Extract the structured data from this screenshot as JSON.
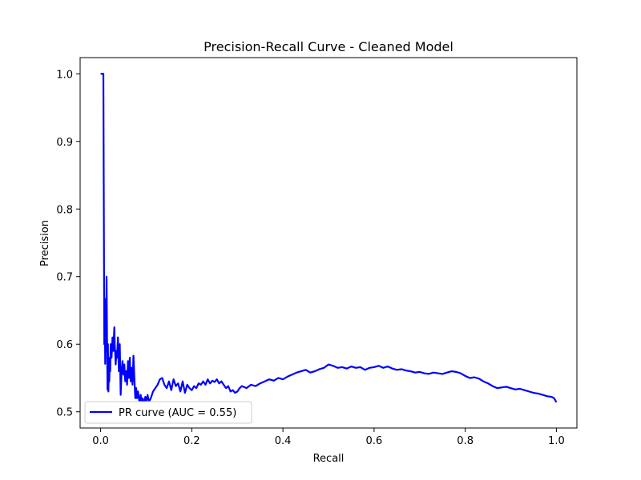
{
  "chart_data": {
    "type": "line",
    "title": "Precision-Recall Curve - Cleaned Model",
    "xlabel": "Recall",
    "ylabel": "Precision",
    "xlim": [
      -0.045,
      1.045
    ],
    "ylim": [
      0.476,
      1.024
    ],
    "xticks": [
      0.0,
      0.2,
      0.4,
      0.6,
      0.8,
      1.0
    ],
    "xtick_labels": [
      "0.0",
      "0.2",
      "0.4",
      "0.6",
      "0.8",
      "1.0"
    ],
    "yticks": [
      0.5,
      0.6,
      0.7,
      0.8,
      0.9,
      1.0
    ],
    "ytick_labels": [
      "0.5",
      "0.6",
      "0.7",
      "0.8",
      "0.9",
      "1.0"
    ],
    "legend": {
      "placement": "lower-left",
      "entries": [
        "PR curve (AUC = 0.55)"
      ]
    },
    "grid": false,
    "series": [
      {
        "name": "PR curve (AUC = 0.55)",
        "color": "#0000ff",
        "x": [
          0.0,
          0.002,
          0.004,
          0.006,
          0.008,
          0.009,
          0.01,
          0.011,
          0.012,
          0.013,
          0.014,
          0.015,
          0.016,
          0.017,
          0.018,
          0.019,
          0.02,
          0.021,
          0.022,
          0.024,
          0.026,
          0.028,
          0.03,
          0.031,
          0.033,
          0.035,
          0.036,
          0.038,
          0.04,
          0.042,
          0.044,
          0.046,
          0.048,
          0.05,
          0.052,
          0.054,
          0.056,
          0.058,
          0.06,
          0.062,
          0.064,
          0.066,
          0.068,
          0.07,
          0.072,
          0.074,
          0.076,
          0.078,
          0.08,
          0.082,
          0.085,
          0.088,
          0.09,
          0.092,
          0.095,
          0.098,
          0.1,
          0.103,
          0.106,
          0.11,
          0.115,
          0.12,
          0.125,
          0.13,
          0.135,
          0.14,
          0.145,
          0.15,
          0.155,
          0.16,
          0.165,
          0.17,
          0.175,
          0.18,
          0.185,
          0.19,
          0.195,
          0.2,
          0.205,
          0.21,
          0.215,
          0.22,
          0.225,
          0.23,
          0.235,
          0.24,
          0.245,
          0.25,
          0.255,
          0.26,
          0.265,
          0.27,
          0.275,
          0.28,
          0.285,
          0.29,
          0.295,
          0.3,
          0.305,
          0.31,
          0.32,
          0.33,
          0.34,
          0.35,
          0.36,
          0.37,
          0.38,
          0.39,
          0.4,
          0.41,
          0.42,
          0.43,
          0.44,
          0.45,
          0.46,
          0.47,
          0.48,
          0.49,
          0.5,
          0.51,
          0.52,
          0.53,
          0.54,
          0.55,
          0.56,
          0.57,
          0.58,
          0.59,
          0.6,
          0.61,
          0.62,
          0.63,
          0.64,
          0.65,
          0.66,
          0.67,
          0.68,
          0.69,
          0.7,
          0.71,
          0.72,
          0.73,
          0.74,
          0.75,
          0.76,
          0.77,
          0.78,
          0.79,
          0.8,
          0.81,
          0.82,
          0.83,
          0.84,
          0.85,
          0.86,
          0.87,
          0.88,
          0.89,
          0.9,
          0.91,
          0.92,
          0.93,
          0.94,
          0.95,
          0.96,
          0.97,
          0.98,
          0.99,
          0.995,
          1.0
        ],
        "y": [
          1.0,
          1.0,
          1.0,
          1.0,
          0.6,
          0.667,
          0.571,
          0.625,
          0.6,
          0.7,
          0.615,
          0.533,
          0.6,
          0.53,
          0.56,
          0.545,
          0.58,
          0.56,
          0.6,
          0.58,
          0.61,
          0.59,
          0.625,
          0.6,
          0.57,
          0.59,
          0.58,
          0.61,
          0.56,
          0.6,
          0.525,
          0.56,
          0.575,
          0.555,
          0.57,
          0.545,
          0.56,
          0.54,
          0.575,
          0.55,
          0.58,
          0.545,
          0.565,
          0.54,
          0.583,
          0.55,
          0.52,
          0.535,
          0.52,
          0.53,
          0.515,
          0.525,
          0.51,
          0.52,
          0.512,
          0.522,
          0.514,
          0.525,
          0.515,
          0.52,
          0.53,
          0.535,
          0.54,
          0.548,
          0.55,
          0.54,
          0.535,
          0.545,
          0.532,
          0.548,
          0.538,
          0.542,
          0.53,
          0.545,
          0.528,
          0.54,
          0.535,
          0.532,
          0.538,
          0.535,
          0.542,
          0.54,
          0.545,
          0.54,
          0.548,
          0.542,
          0.546,
          0.544,
          0.548,
          0.542,
          0.545,
          0.54,
          0.535,
          0.538,
          0.53,
          0.532,
          0.528,
          0.53,
          0.535,
          0.538,
          0.535,
          0.54,
          0.538,
          0.542,
          0.545,
          0.548,
          0.546,
          0.55,
          0.548,
          0.552,
          0.555,
          0.558,
          0.56,
          0.562,
          0.558,
          0.56,
          0.563,
          0.565,
          0.57,
          0.568,
          0.565,
          0.566,
          0.564,
          0.567,
          0.565,
          0.566,
          0.562,
          0.565,
          0.566,
          0.568,
          0.565,
          0.567,
          0.564,
          0.562,
          0.563,
          0.561,
          0.56,
          0.558,
          0.559,
          0.557,
          0.556,
          0.558,
          0.557,
          0.556,
          0.558,
          0.56,
          0.559,
          0.557,
          0.553,
          0.55,
          0.551,
          0.549,
          0.545,
          0.542,
          0.538,
          0.535,
          0.536,
          0.537,
          0.535,
          0.533,
          0.534,
          0.532,
          0.53,
          0.528,
          0.527,
          0.525,
          0.523,
          0.522,
          0.52,
          0.514
        ]
      }
    ]
  }
}
